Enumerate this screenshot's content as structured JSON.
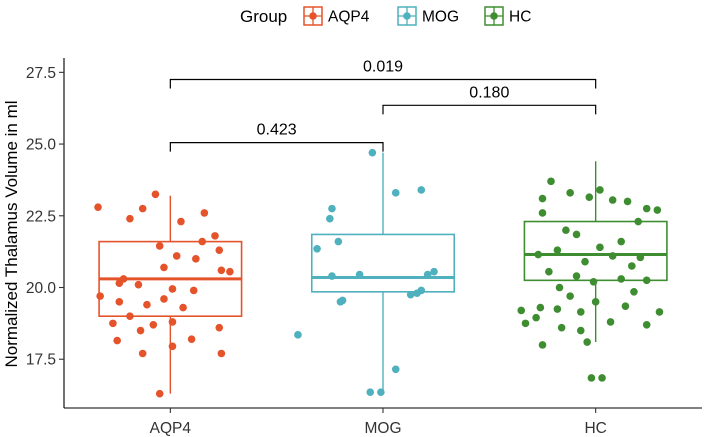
{
  "chart_data": {
    "type": "boxplot",
    "ylabel": "Normalized Thalamus Volume in ml",
    "xlabel": "",
    "ylim": [
      15.8,
      28.0
    ],
    "y_ticks": [
      "17.5",
      "20.0",
      "22.5",
      "25.0",
      "27.5"
    ],
    "y_tick_values": [
      17.5,
      20.0,
      22.5,
      25.0,
      27.5
    ],
    "categories": [
      "AQP4",
      "MOG",
      "HC"
    ],
    "legend": {
      "title": "Group",
      "position": "top",
      "entries": [
        "AQP4",
        "MOG",
        "HC"
      ]
    },
    "colors": {
      "AQP4": "#E5532B",
      "MOG": "#4FB0BE",
      "HC": "#3E8D31"
    },
    "boxes": [
      {
        "name": "AQP4",
        "q1": 19.0,
        "median": 20.3,
        "q3": 21.6,
        "whisker_low": 16.3,
        "whisker_high": 23.2
      },
      {
        "name": "MOG",
        "q1": 19.85,
        "median": 20.35,
        "q3": 21.85,
        "whisker_low": 16.3,
        "whisker_high": 24.7
      },
      {
        "name": "HC",
        "q1": 20.25,
        "median": 21.15,
        "q3": 22.3,
        "whisker_low": 18.1,
        "whisker_high": 24.4
      }
    ],
    "points": {
      "AQP4": [
        {
          "dx": -0.34,
          "y": 22.8
        },
        {
          "dx": -0.07,
          "y": 23.25
        },
        {
          "dx": 0.05,
          "y": 22.3
        },
        {
          "dx": -0.19,
          "y": 22.4
        },
        {
          "dx": -0.13,
          "y": 22.75
        },
        {
          "dx": 0.16,
          "y": 22.6
        },
        {
          "dx": 0.15,
          "y": 21.6
        },
        {
          "dx": 0.21,
          "y": 21.8
        },
        {
          "dx": 0.23,
          "y": 21.3
        },
        {
          "dx": -0.05,
          "y": 21.45
        },
        {
          "dx": 0.03,
          "y": 21.1
        },
        {
          "dx": 0.12,
          "y": 21.0
        },
        {
          "dx": 0.24,
          "y": 20.6
        },
        {
          "dx": 0.28,
          "y": 20.55
        },
        {
          "dx": -0.03,
          "y": 20.7
        },
        {
          "dx": -0.22,
          "y": 20.3
        },
        {
          "dx": -0.24,
          "y": 20.15
        },
        {
          "dx": -0.15,
          "y": 20.1
        },
        {
          "dx": 0.01,
          "y": 19.95
        },
        {
          "dx": 0.11,
          "y": 19.9
        },
        {
          "dx": -0.33,
          "y": 19.7
        },
        {
          "dx": -0.03,
          "y": 19.6
        },
        {
          "dx": -0.24,
          "y": 19.5
        },
        {
          "dx": -0.11,
          "y": 19.4
        },
        {
          "dx": 0.06,
          "y": 19.3
        },
        {
          "dx": -0.19,
          "y": 19.0
        },
        {
          "dx": 0.01,
          "y": 18.8
        },
        {
          "dx": -0.08,
          "y": 18.7
        },
        {
          "dx": 0.23,
          "y": 18.6
        },
        {
          "dx": -0.27,
          "y": 18.75
        },
        {
          "dx": -0.14,
          "y": 18.5
        },
        {
          "dx": 0.1,
          "y": 18.2
        },
        {
          "dx": -0.25,
          "y": 18.15
        },
        {
          "dx": 0.01,
          "y": 17.95
        },
        {
          "dx": -0.13,
          "y": 17.7
        },
        {
          "dx": 0.24,
          "y": 17.7
        },
        {
          "dx": -0.05,
          "y": 16.3
        }
      ],
      "MOG": [
        {
          "dx": -0.05,
          "y": 24.7
        },
        {
          "dx": 0.18,
          "y": 23.4
        },
        {
          "dx": 0.06,
          "y": 23.3
        },
        {
          "dx": -0.24,
          "y": 22.75
        },
        {
          "dx": -0.25,
          "y": 22.4
        },
        {
          "dx": -0.21,
          "y": 21.6
        },
        {
          "dx": -0.31,
          "y": 21.35
        },
        {
          "dx": -0.24,
          "y": 20.4
        },
        {
          "dx": -0.11,
          "y": 20.45
        },
        {
          "dx": 0.24,
          "y": 20.55
        },
        {
          "dx": 0.21,
          "y": 20.45
        },
        {
          "dx": 0.16,
          "y": 19.8
        },
        {
          "dx": 0.18,
          "y": 19.9
        },
        {
          "dx": 0.13,
          "y": 19.75
        },
        {
          "dx": -0.19,
          "y": 19.55
        },
        {
          "dx": -0.2,
          "y": 19.5
        },
        {
          "dx": -0.4,
          "y": 18.35
        },
        {
          "dx": 0.06,
          "y": 17.15
        },
        {
          "dx": -0.01,
          "y": 16.35
        },
        {
          "dx": -0.06,
          "y": 16.35
        }
      ],
      "HC": [
        {
          "dx": -0.21,
          "y": 23.7
        },
        {
          "dx": 0.02,
          "y": 23.4
        },
        {
          "dx": -0.12,
          "y": 23.3
        },
        {
          "dx": -0.25,
          "y": 23.1
        },
        {
          "dx": -0.03,
          "y": 23.15
        },
        {
          "dx": 0.08,
          "y": 23.05
        },
        {
          "dx": 0.15,
          "y": 23.0
        },
        {
          "dx": 0.24,
          "y": 22.75
        },
        {
          "dx": 0.29,
          "y": 22.7
        },
        {
          "dx": 0.2,
          "y": 22.3
        },
        {
          "dx": -0.25,
          "y": 22.6
        },
        {
          "dx": -0.14,
          "y": 22.0
        },
        {
          "dx": -0.09,
          "y": 21.85
        },
        {
          "dx": 0.12,
          "y": 21.6
        },
        {
          "dx": 0.02,
          "y": 21.4
        },
        {
          "dx": -0.18,
          "y": 21.3
        },
        {
          "dx": -0.27,
          "y": 21.15
        },
        {
          "dx": 0.08,
          "y": 21.1
        },
        {
          "dx": 0.21,
          "y": 21.05
        },
        {
          "dx": -0.05,
          "y": 20.9
        },
        {
          "dx": 0.17,
          "y": 20.75
        },
        {
          "dx": -0.22,
          "y": 20.55
        },
        {
          "dx": -0.09,
          "y": 20.4
        },
        {
          "dx": 0.12,
          "y": 20.3
        },
        {
          "dx": 0.24,
          "y": 20.25
        },
        {
          "dx": -0.01,
          "y": 20.2
        },
        {
          "dx": -0.17,
          "y": 20.0
        },
        {
          "dx": 0.18,
          "y": 19.85
        },
        {
          "dx": -0.12,
          "y": 19.7
        },
        {
          "dx": 0.0,
          "y": 19.5
        },
        {
          "dx": -0.26,
          "y": 19.3
        },
        {
          "dx": -0.18,
          "y": 19.25
        },
        {
          "dx": -0.35,
          "y": 19.2
        },
        {
          "dx": 0.14,
          "y": 19.35
        },
        {
          "dx": -0.07,
          "y": 19.15
        },
        {
          "dx": 0.3,
          "y": 19.15
        },
        {
          "dx": -0.28,
          "y": 18.95
        },
        {
          "dx": -0.33,
          "y": 18.75
        },
        {
          "dx": 0.07,
          "y": 18.8
        },
        {
          "dx": 0.24,
          "y": 18.7
        },
        {
          "dx": -0.16,
          "y": 18.6
        },
        {
          "dx": -0.07,
          "y": 18.5
        },
        {
          "dx": -0.04,
          "y": 18.1
        },
        {
          "dx": -0.25,
          "y": 18.0
        },
        {
          "dx": -0.02,
          "y": 16.85
        },
        {
          "dx": 0.03,
          "y": 16.85
        }
      ]
    },
    "comparisons": [
      {
        "from": "AQP4",
        "to": "MOG",
        "label": "0.423",
        "y": 25.05
      },
      {
        "from": "MOG",
        "to": "HC",
        "label": "0.180",
        "y": 26.35
      },
      {
        "from": "AQP4",
        "to": "HC",
        "label": "0.019",
        "y": 27.25
      }
    ]
  }
}
